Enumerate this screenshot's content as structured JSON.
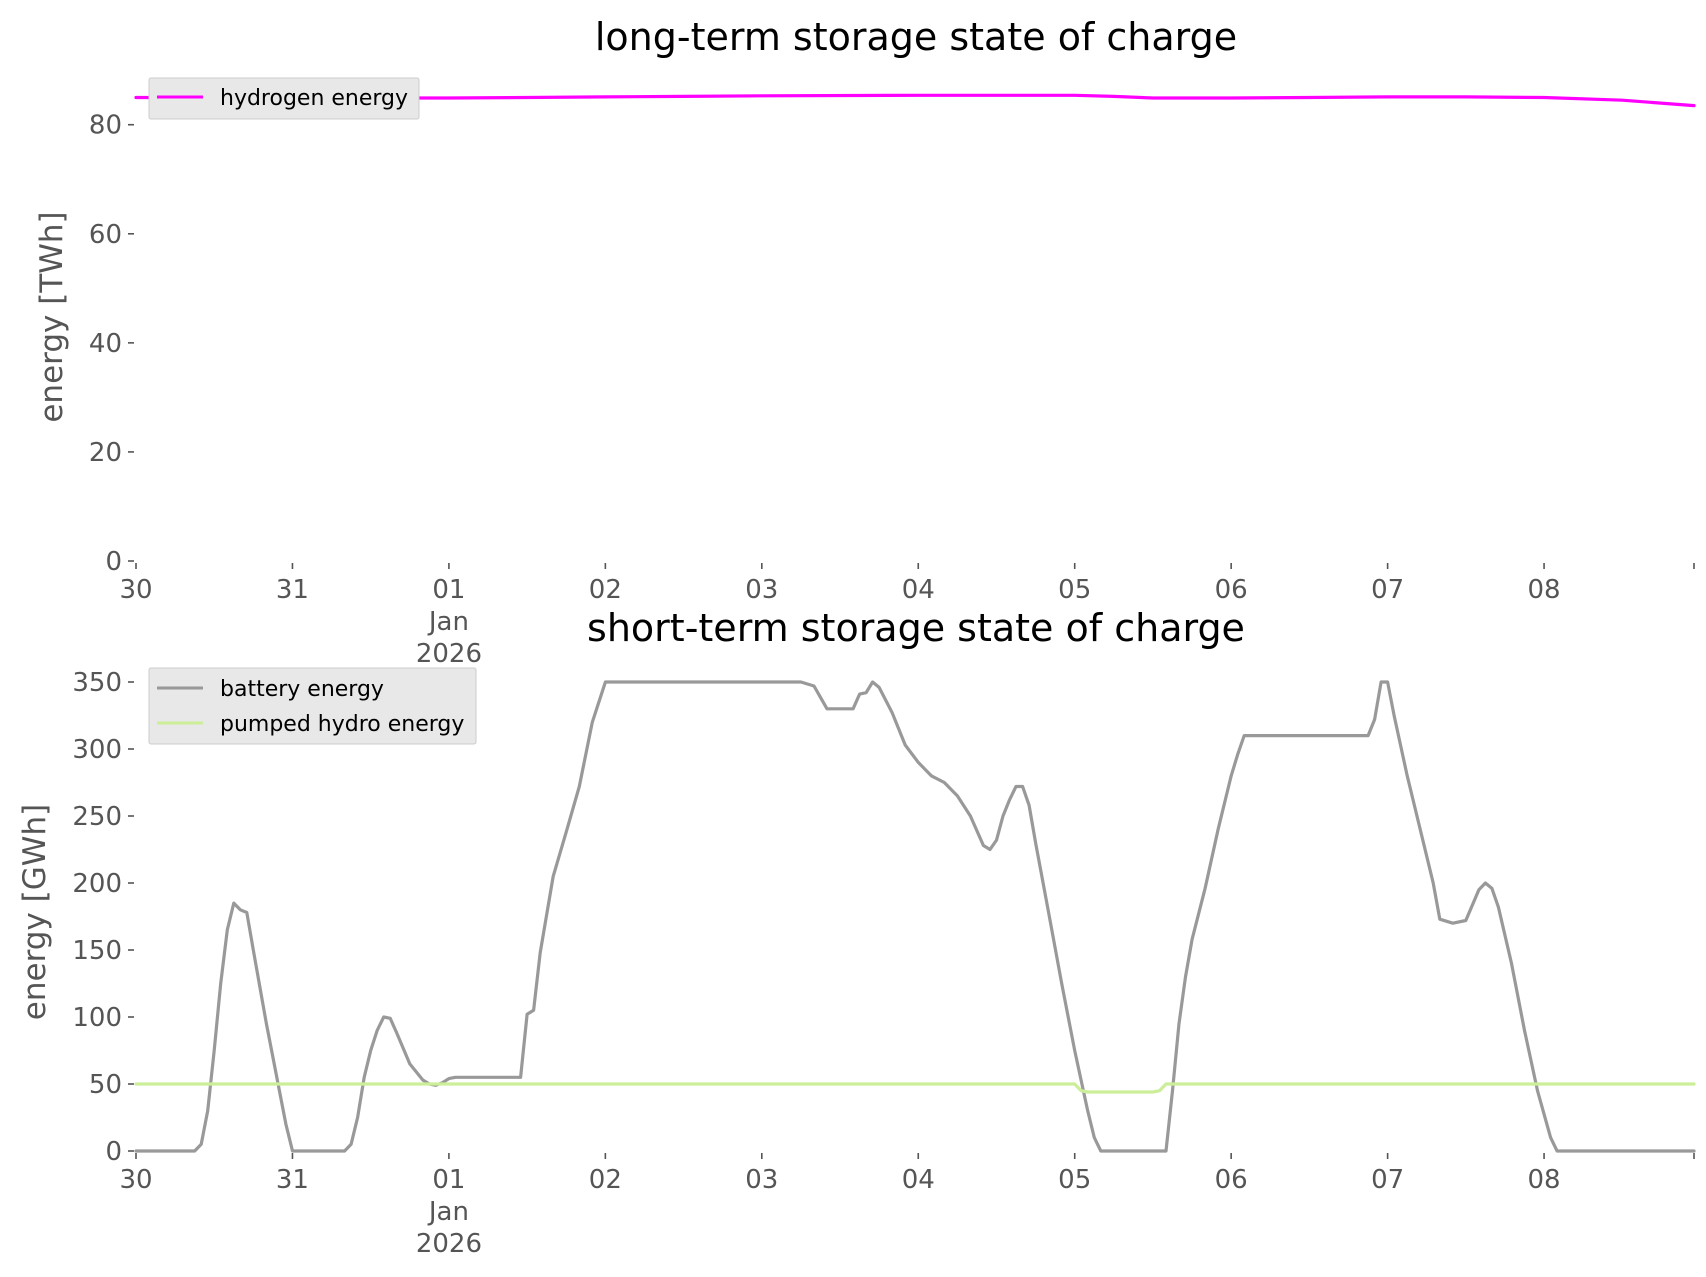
{
  "chart_data": [
    {
      "type": "line",
      "title": "long-term storage state of charge",
      "xlabel": "",
      "ylabel": "energy [TWh]",
      "ylim": [
        0,
        86
      ],
      "yticks": [
        0,
        20,
        40,
        60,
        80
      ],
      "xlim": [
        "2025-12-30",
        "2026-01-08 23:00"
      ],
      "x_tick_labels": [
        "30",
        "31",
        "01\nJan\n2026",
        "02",
        "03",
        "04",
        "05",
        "06",
        "07",
        "08"
      ],
      "grid": false,
      "legend_position": "upper-left",
      "series": [
        {
          "name": "hydrogen energy",
          "color": "#ff00ff",
          "points": [
            [
              "2025-12-30 00:00",
              85.0
            ],
            [
              "2025-12-31 00:00",
              84.9
            ],
            [
              "2026-01-01 00:00",
              84.9
            ],
            [
              "2026-01-01 12:00",
              85.0
            ],
            [
              "2026-01-02 00:00",
              85.1
            ],
            [
              "2026-01-02 12:00",
              85.2
            ],
            [
              "2026-01-03 00:00",
              85.3
            ],
            [
              "2026-01-04 00:00",
              85.4
            ],
            [
              "2026-01-05 00:00",
              85.4
            ],
            [
              "2026-01-05 06:00",
              85.2
            ],
            [
              "2026-01-05 12:00",
              84.9
            ],
            [
              "2026-01-06 00:00",
              84.9
            ],
            [
              "2026-01-06 12:00",
              85.0
            ],
            [
              "2026-01-07 00:00",
              85.1
            ],
            [
              "2026-01-07 12:00",
              85.1
            ],
            [
              "2026-01-08 00:00",
              85.0
            ],
            [
              "2026-01-08 12:00",
              84.5
            ],
            [
              "2026-01-08 23:00",
              83.5
            ]
          ]
        }
      ]
    },
    {
      "type": "line",
      "title": "short-term storage state of charge",
      "xlabel": "",
      "ylabel": "energy [GWh]",
      "ylim": [
        0,
        350
      ],
      "yticks": [
        0,
        50,
        100,
        150,
        200,
        250,
        300,
        350
      ],
      "xlim": [
        "2025-12-30",
        "2026-01-08 23:00"
      ],
      "x_tick_labels": [
        "30",
        "31",
        "01\nJan\n2026",
        "02",
        "03",
        "04",
        "05",
        "06",
        "07",
        "08"
      ],
      "grid": false,
      "legend_position": "upper-left",
      "series": [
        {
          "name": "battery energy",
          "color": "#999999",
          "points": [
            [
              "2025-12-30 00:00",
              0
            ],
            [
              "2025-12-30 09:00",
              0
            ],
            [
              "2025-12-30 10:00",
              5
            ],
            [
              "2025-12-30 11:00",
              30
            ],
            [
              "2025-12-30 12:00",
              75
            ],
            [
              "2025-12-30 13:00",
              125
            ],
            [
              "2025-12-30 14:00",
              165
            ],
            [
              "2025-12-30 15:00",
              185
            ],
            [
              "2025-12-30 16:00",
              180
            ],
            [
              "2025-12-30 17:00",
              178
            ],
            [
              "2025-12-30 18:00",
              150
            ],
            [
              "2025-12-30 20:00",
              95
            ],
            [
              "2025-12-30 22:00",
              45
            ],
            [
              "2025-12-30 23:00",
              20
            ],
            [
              "2025-12-31 00:00",
              0
            ],
            [
              "2025-12-31 08:00",
              0
            ],
            [
              "2025-12-31 09:00",
              5
            ],
            [
              "2025-12-31 10:00",
              25
            ],
            [
              "2025-12-31 11:00",
              55
            ],
            [
              "2025-12-31 12:00",
              75
            ],
            [
              "2025-12-31 13:00",
              90
            ],
            [
              "2025-12-31 14:00",
              100
            ],
            [
              "2025-12-31 15:00",
              99
            ],
            [
              "2025-12-31 16:00",
              88
            ],
            [
              "2025-12-31 18:00",
              65
            ],
            [
              "2025-12-31 20:00",
              53
            ],
            [
              "2025-12-31 21:00",
              50
            ],
            [
              "2025-12-31 22:00",
              49
            ],
            [
              "2025-12-31 23:00",
              51
            ],
            [
              "2026-01-01 00:00",
              54
            ],
            [
              "2026-01-01 01:00",
              55
            ],
            [
              "2026-01-01 11:00",
              55
            ],
            [
              "2026-01-01 12:00",
              102
            ],
            [
              "2026-01-01 13:00",
              105
            ],
            [
              "2026-01-01 14:00",
              148
            ],
            [
              "2026-01-01 16:00",
              205
            ],
            [
              "2026-01-01 18:00",
              238
            ],
            [
              "2026-01-01 20:00",
              272
            ],
            [
              "2026-01-01 22:00",
              320
            ],
            [
              "2026-01-02 00:00",
              350
            ],
            [
              "2026-01-03 06:00",
              350
            ],
            [
              "2026-01-03 08:00",
              347
            ],
            [
              "2026-01-03 10:00",
              330
            ],
            [
              "2026-01-03 14:00",
              330
            ],
            [
              "2026-01-03 15:00",
              341
            ],
            [
              "2026-01-03 16:00",
              342
            ],
            [
              "2026-01-03 17:00",
              350
            ],
            [
              "2026-01-03 18:00",
              346
            ],
            [
              "2026-01-03 20:00",
              327
            ],
            [
              "2026-01-03 22:00",
              303
            ],
            [
              "2026-01-04 00:00",
              290
            ],
            [
              "2026-01-04 02:00",
              280
            ],
            [
              "2026-01-04 04:00",
              275
            ],
            [
              "2026-01-04 06:00",
              265
            ],
            [
              "2026-01-04 08:00",
              250
            ],
            [
              "2026-01-04 10:00",
              228
            ],
            [
              "2026-01-04 11:00",
              225
            ],
            [
              "2026-01-04 12:00",
              232
            ],
            [
              "2026-01-04 13:00",
              250
            ],
            [
              "2026-01-04 14:00",
              262
            ],
            [
              "2026-01-04 15:00",
              272
            ],
            [
              "2026-01-04 16:00",
              272
            ],
            [
              "2026-01-04 17:00",
              258
            ],
            [
              "2026-01-04 18:00",
              230
            ],
            [
              "2026-01-04 20:00",
              178
            ],
            [
              "2026-01-04 22:00",
              125
            ],
            [
              "2026-01-05 00:00",
              75
            ],
            [
              "2026-01-05 02:00",
              30
            ],
            [
              "2026-01-05 03:00",
              10
            ],
            [
              "2026-01-05 04:00",
              0
            ],
            [
              "2026-01-05 14:00",
              0
            ],
            [
              "2026-01-05 15:00",
              45
            ],
            [
              "2026-01-05 16:00",
              95
            ],
            [
              "2026-01-05 17:00",
              130
            ],
            [
              "2026-01-05 18:00",
              158
            ],
            [
              "2026-01-05 20:00",
              196
            ],
            [
              "2026-01-05 22:00",
              240
            ],
            [
              "2026-01-06 00:00",
              280
            ],
            [
              "2026-01-06 01:00",
              296
            ],
            [
              "2026-01-06 02:00",
              310
            ],
            [
              "2026-01-06 21:00",
              310
            ],
            [
              "2026-01-06 22:00",
              322
            ],
            [
              "2026-01-06 23:00",
              350
            ],
            [
              "2026-01-07 00:00",
              350
            ],
            [
              "2026-01-07 01:00",
              325
            ],
            [
              "2026-01-07 03:00",
              280
            ],
            [
              "2026-01-07 05:00",
              240
            ],
            [
              "2026-01-07 07:00",
              200
            ],
            [
              "2026-01-07 08:00",
              173
            ],
            [
              "2026-01-07 10:00",
              170
            ],
            [
              "2026-01-07 12:00",
              172
            ],
            [
              "2026-01-07 14:00",
              195
            ],
            [
              "2026-01-07 15:00",
              200
            ],
            [
              "2026-01-07 16:00",
              196
            ],
            [
              "2026-01-07 17:00",
              182
            ],
            [
              "2026-01-07 19:00",
              140
            ],
            [
              "2026-01-07 21:00",
              90
            ],
            [
              "2026-01-07 23:00",
              45
            ],
            [
              "2026-01-08 01:00",
              10
            ],
            [
              "2026-01-08 02:00",
              0
            ],
            [
              "2026-01-08 23:00",
              0
            ]
          ]
        },
        {
          "name": "pumped hydro energy",
          "color": "#ccee99",
          "points": [
            [
              "2025-12-30 00:00",
              50
            ],
            [
              "2026-01-04 23:00",
              50
            ],
            [
              "2026-01-05 00:00",
              50
            ],
            [
              "2026-01-05 01:00",
              45
            ],
            [
              "2026-01-05 02:00",
              44
            ],
            [
              "2026-01-05 12:00",
              44
            ],
            [
              "2026-01-05 13:00",
              45
            ],
            [
              "2026-01-05 14:00",
              50
            ],
            [
              "2026-01-08 23:00",
              50
            ]
          ]
        }
      ]
    }
  ]
}
